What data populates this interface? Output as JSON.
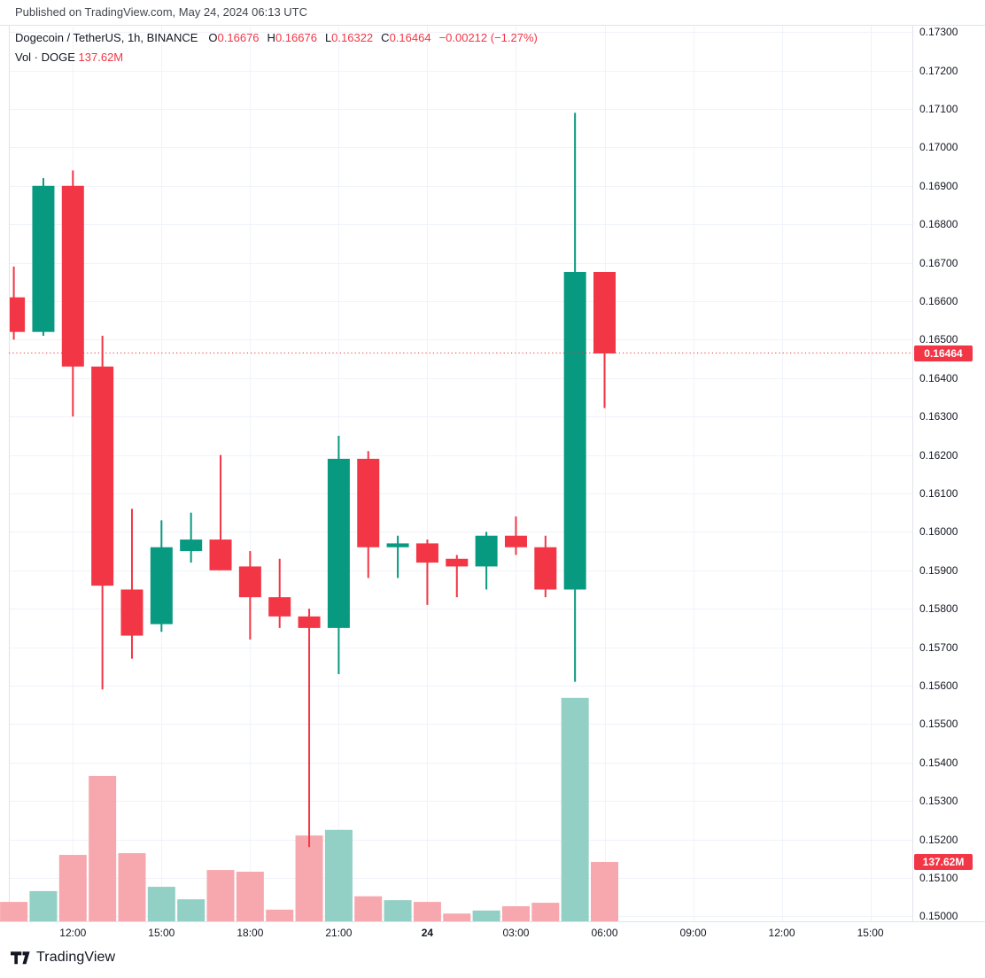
{
  "published": {
    "text": "Published on TradingView.com, May 24, 2024 06:13 UTC"
  },
  "legend": {
    "symbol": "Dogecoin / TetherUS, 1h, BINANCE",
    "ohlc": [
      {
        "label": "O",
        "value": "0.16676"
      },
      {
        "label": "H",
        "value": "0.16676"
      },
      {
        "label": "L",
        "value": "0.16322"
      },
      {
        "label": "C",
        "value": "0.16464"
      }
    ],
    "change": "−0.00212 (−1.27%)",
    "volume_label": "Vol · DOGE",
    "volume_value": "137.62M"
  },
  "price_axis": {
    "labels": [
      "0.17300",
      "0.17200",
      "0.17100",
      "0.17000",
      "0.16900",
      "0.16800",
      "0.16700",
      "0.16600",
      "0.16500",
      "0.16400",
      "0.16300",
      "0.16200",
      "0.16100",
      "0.16000",
      "0.15900",
      "0.15800",
      "0.15700",
      "0.15600",
      "0.15500",
      "0.15400",
      "0.15300",
      "0.15200",
      "0.15100",
      "0.15000"
    ],
    "price_badge": "0.16464",
    "volume_badge": "137.62M"
  },
  "time_axis": {
    "labels": [
      "12:00",
      "15:00",
      "18:00",
      "21:00",
      "24",
      "03:00",
      "06:00",
      "09:00",
      "12:00",
      "15:00"
    ],
    "bold_label": "24"
  },
  "logo": {
    "text": "TradingView"
  },
  "colors": {
    "up": "#089981",
    "down": "#F23645",
    "volume_up": "#92CFC5",
    "volume_down": "#F7A8AE",
    "grid": "#F0F3FA",
    "frame": "#E0E3EB",
    "text": "#131722",
    "muted_text": "#42464E",
    "badge_bg": "#F23645",
    "dotted_line": "#F23645"
  },
  "chart_data": {
    "type": "candlestick_with_volume",
    "title": "Dogecoin / TetherUS, 1h, BINANCE",
    "price_ylim": [
      0.14987,
      0.17319
    ],
    "price_grid_step": 0.001,
    "last_price": 0.16464,
    "last_volume_m": 137.62,
    "legend_position": "top-left",
    "grid": true,
    "candles": [
      {
        "time": "10:00",
        "open": 0.1661,
        "high": 0.1669,
        "low": 0.165,
        "close": 0.1652,
        "volume_m": 45
      },
      {
        "time": "11:00",
        "open": 0.1652,
        "high": 0.1692,
        "low": 0.1651,
        "close": 0.169,
        "volume_m": 70
      },
      {
        "time": "12:00",
        "open": 0.169,
        "high": 0.1694,
        "low": 0.163,
        "close": 0.1643,
        "volume_m": 154
      },
      {
        "time": "13:00",
        "open": 0.1643,
        "high": 0.1651,
        "low": 0.1559,
        "close": 0.1586,
        "volume_m": 337
      },
      {
        "time": "14:00",
        "open": 0.1585,
        "high": 0.1606,
        "low": 0.1567,
        "close": 0.1573,
        "volume_m": 158
      },
      {
        "time": "15:00",
        "open": 0.1576,
        "high": 0.1603,
        "low": 0.1574,
        "close": 0.1596,
        "volume_m": 80
      },
      {
        "time": "16:00",
        "open": 0.1595,
        "high": 0.1605,
        "low": 0.1592,
        "close": 0.1598,
        "volume_m": 51
      },
      {
        "time": "17:00",
        "open": 0.1598,
        "high": 0.162,
        "low": 0.159,
        "close": 0.159,
        "volume_m": 119
      },
      {
        "time": "18:00",
        "open": 0.1591,
        "high": 0.1595,
        "low": 0.1572,
        "close": 0.1583,
        "volume_m": 115
      },
      {
        "time": "19:00",
        "open": 0.1583,
        "high": 0.1593,
        "low": 0.1575,
        "close": 0.1578,
        "volume_m": 27
      },
      {
        "time": "20:00",
        "open": 0.1578,
        "high": 0.158,
        "low": 0.1518,
        "close": 0.1575,
        "volume_m": 199
      },
      {
        "time": "21:00",
        "open": 0.1575,
        "high": 0.1625,
        "low": 0.1563,
        "close": 0.1619,
        "volume_m": 212
      },
      {
        "time": "22:00",
        "open": 0.1619,
        "high": 0.1621,
        "low": 0.1588,
        "close": 0.1596,
        "volume_m": 58
      },
      {
        "time": "23:00",
        "open": 0.1596,
        "high": 0.1599,
        "low": 0.1588,
        "close": 0.1597,
        "volume_m": 49
      },
      {
        "time": "00:00",
        "open": 0.1597,
        "high": 0.1598,
        "low": 0.1581,
        "close": 0.1592,
        "volume_m": 45
      },
      {
        "time": "01:00",
        "open": 0.1593,
        "high": 0.1594,
        "low": 0.1583,
        "close": 0.1591,
        "volume_m": 18
      },
      {
        "time": "02:00",
        "open": 0.1591,
        "high": 0.16,
        "low": 0.1585,
        "close": 0.1599,
        "volume_m": 25
      },
      {
        "time": "03:00",
        "open": 0.1599,
        "high": 0.1604,
        "low": 0.1594,
        "close": 0.1596,
        "volume_m": 35
      },
      {
        "time": "04:00",
        "open": 0.1596,
        "high": 0.1599,
        "low": 0.1583,
        "close": 0.1585,
        "volume_m": 43
      },
      {
        "time": "05:00",
        "open": 0.1585,
        "high": 0.1709,
        "low": 0.1561,
        "close": 0.16676,
        "volume_m": 518
      },
      {
        "time": "06:00",
        "open": 0.16676,
        "high": 0.16676,
        "low": 0.16322,
        "close": 0.16464,
        "volume_m": 137.62
      }
    ]
  }
}
